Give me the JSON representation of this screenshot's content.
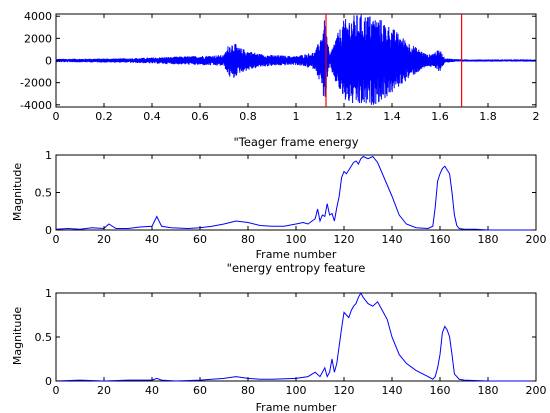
{
  "colors": {
    "signal": "#0000ff",
    "marker": "#ff0000",
    "axes": "#000000",
    "background": "#ffffff"
  },
  "chart_data": [
    {
      "type": "line",
      "title": "",
      "xlabel": "",
      "ylabel": "",
      "xlim": [
        0,
        2
      ],
      "ylim": [
        -4200,
        4200
      ],
      "xticks": [
        "0",
        "0.2",
        "0.4",
        "0.6",
        "0.8",
        "1",
        "1.2",
        "1.4",
        "1.6",
        "1.8",
        "2"
      ],
      "yticks": [
        "4000",
        "2000",
        "0",
        "-2000",
        "-4000"
      ],
      "grid": false,
      "series": [
        {
          "envelope": {
            "x": [
              0,
              0.3,
              0.7,
              0.72,
              0.74,
              0.76,
              0.8,
              0.85,
              0.9,
              1.0,
              1.08,
              1.1,
              1.12,
              1.14,
              1.16,
              1.2,
              1.25,
              1.3,
              1.35,
              1.4,
              1.45,
              1.5,
              1.55,
              1.6,
              1.62,
              1.66,
              1.7,
              2.0
            ],
            "amp": [
              150,
              200,
              500,
              1500,
              1700,
              1200,
              900,
              600,
              500,
              400,
              800,
              2000,
              3800,
              400,
              1800,
              3700,
              4200,
              4200,
              3800,
              3000,
              2000,
              1200,
              500,
              1000,
              200,
              150,
              100,
              100
            ]
          }
        }
      ],
      "markers": [
        {
          "x": 1.125,
          "color": "#ff0000"
        },
        {
          "x": 1.69,
          "color": "#ff0000"
        }
      ]
    },
    {
      "type": "line",
      "title": "\"Teager frame energy",
      "xlabel": "Frame number",
      "ylabel": "Magnitude",
      "xlim": [
        0,
        200
      ],
      "ylim": [
        0,
        1
      ],
      "xticks": [
        "0",
        "20",
        "40",
        "60",
        "80",
        "100",
        "120",
        "140",
        "160",
        "180",
        "200"
      ],
      "yticks": [
        "1",
        "0.5",
        "0"
      ],
      "grid": false,
      "series": [
        {
          "x": [
            0,
            5,
            10,
            15,
            20,
            22,
            25,
            30,
            35,
            40,
            42,
            44,
            48,
            55,
            60,
            65,
            70,
            75,
            80,
            85,
            90,
            95,
            100,
            103,
            105,
            108,
            109,
            110,
            111,
            112,
            113,
            114,
            115,
            116,
            117,
            118,
            119,
            120,
            121,
            122,
            123,
            124,
            125,
            126,
            127,
            128,
            130,
            132,
            134,
            136,
            138,
            140,
            143,
            146,
            150,
            155,
            157,
            158,
            159,
            160,
            161,
            162,
            163,
            164,
            165,
            166,
            167,
            168,
            170,
            175,
            180,
            185,
            190,
            195,
            200
          ],
          "y": [
            0.01,
            0.02,
            0.01,
            0.03,
            0.02,
            0.08,
            0.02,
            0.02,
            0.04,
            0.05,
            0.18,
            0.05,
            0.03,
            0.02,
            0.03,
            0.05,
            0.08,
            0.12,
            0.1,
            0.06,
            0.05,
            0.05,
            0.08,
            0.1,
            0.08,
            0.15,
            0.28,
            0.12,
            0.2,
            0.18,
            0.35,
            0.2,
            0.22,
            0.12,
            0.3,
            0.45,
            0.7,
            0.78,
            0.75,
            0.8,
            0.85,
            0.9,
            0.92,
            0.88,
            0.95,
            0.98,
            0.95,
            0.98,
            0.9,
            0.75,
            0.6,
            0.45,
            0.2,
            0.08,
            0.03,
            0.02,
            0.05,
            0.3,
            0.65,
            0.75,
            0.82,
            0.85,
            0.8,
            0.75,
            0.5,
            0.2,
            0.06,
            0.02,
            0.01,
            0.01,
            0.0,
            0.0,
            0.0,
            0.0,
            0.0
          ]
        }
      ]
    },
    {
      "type": "line",
      "title": "\"energy entropy feature",
      "xlabel": "Frame number",
      "ylabel": "Magnitude",
      "xlim": [
        0,
        200
      ],
      "ylim": [
        0,
        1
      ],
      "xticks": [
        "0",
        "20",
        "40",
        "60",
        "80",
        "100",
        "120",
        "140",
        "160",
        "180",
        "200"
      ],
      "yticks": [
        "1",
        "0.5",
        "0"
      ],
      "grid": false,
      "series": [
        {
          "x": [
            0,
            10,
            20,
            30,
            40,
            42,
            44,
            50,
            60,
            70,
            75,
            80,
            85,
            90,
            100,
            105,
            108,
            110,
            112,
            113,
            114,
            115,
            116,
            117,
            118,
            119,
            120,
            121,
            122,
            123,
            124,
            125,
            126,
            127,
            128,
            130,
            132,
            134,
            136,
            138,
            140,
            143,
            146,
            150,
            155,
            157,
            158,
            159,
            160,
            161,
            162,
            163,
            164,
            165,
            166,
            168,
            170,
            180,
            190,
            200
          ],
          "y": [
            0.0,
            0.01,
            0.0,
            0.01,
            0.01,
            0.03,
            0.01,
            0.0,
            0.01,
            0.03,
            0.05,
            0.03,
            0.02,
            0.02,
            0.03,
            0.05,
            0.1,
            0.05,
            0.15,
            0.05,
            0.1,
            0.25,
            0.1,
            0.2,
            0.4,
            0.6,
            0.78,
            0.75,
            0.72,
            0.8,
            0.85,
            0.88,
            0.95,
            1.0,
            0.95,
            0.88,
            0.85,
            0.9,
            0.8,
            0.7,
            0.5,
            0.3,
            0.2,
            0.12,
            0.05,
            0.02,
            0.05,
            0.15,
            0.3,
            0.55,
            0.62,
            0.58,
            0.5,
            0.3,
            0.08,
            0.02,
            0.01,
            0.0,
            0.0,
            0.0
          ]
        }
      ]
    }
  ]
}
